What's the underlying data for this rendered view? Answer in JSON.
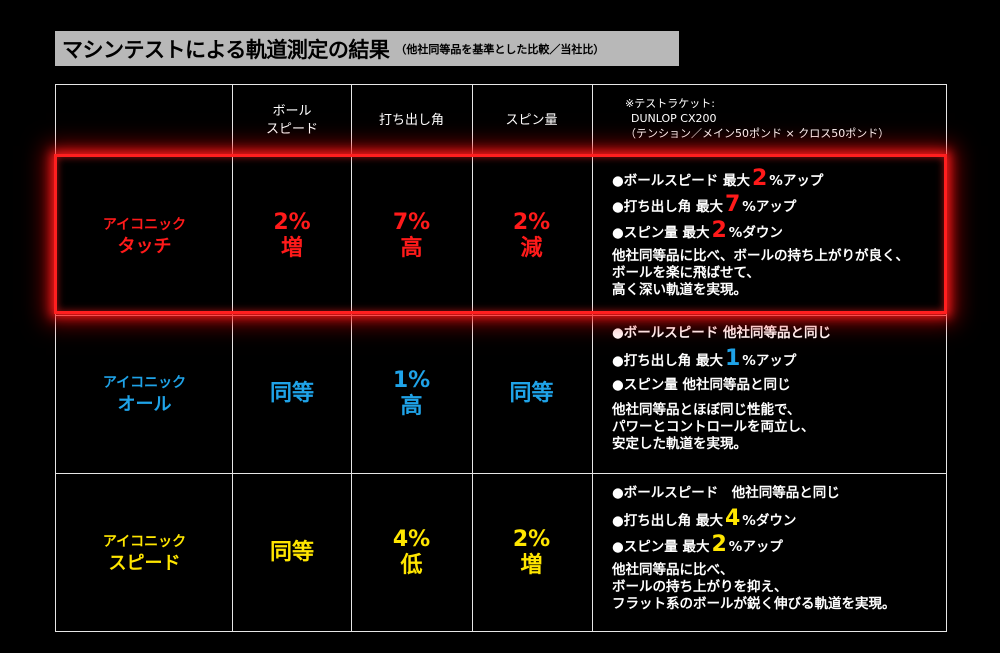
{
  "title": {
    "main": "マシンテストによる軌道測定の結果",
    "sub": "（他社同等品を基準とした比較／当社比）"
  },
  "header": {
    "ball_speed_line1": "ボール",
    "ball_speed_line2": "スピード",
    "launch_angle": "打ち出し角",
    "spin": "スピン量",
    "note": {
      "line1": "※テストラケット:",
      "line2": "DUNLOP CX200",
      "line3": "（テンション／メイン50ポンド × クロス50ポンド）"
    }
  },
  "rows": [
    {
      "name_line1": "アイコニック",
      "name_line2": "タッチ",
      "color": "#ff1a1a",
      "speed_val": "2%",
      "speed_word": "増",
      "angle_val": "7%",
      "angle_word": "高",
      "spin_val": "2%",
      "spin_word": "減",
      "b1_pre": "●ボールスピード 最大",
      "b1_num": "2",
      "b1_post": "%アップ",
      "b2_pre": "●打ち出し角 最大",
      "b2_num": "7",
      "b2_post": "%アップ",
      "b3_pre": "●スピン量 最大",
      "b3_num": "2",
      "b3_post": "%ダウン",
      "para1": "他社同等品に比べ、ボールの持ち上がりが良く、",
      "para2": "ボールを楽に飛ばせて、",
      "para3": "高く深い軌道を実現。"
    },
    {
      "name_line1": "アイコニック",
      "name_line2": "オール",
      "color": "#1fa3e8",
      "speed_val": "同等",
      "angle_val": "1%",
      "angle_word": "高",
      "spin_val": "同等",
      "b1_pre": "●ボールスピード 他社同等品と同じ",
      "b2_pre": "●打ち出し角 最大",
      "b2_num": "1",
      "b2_post": "%アップ",
      "b3_pre": "●スピン量 他社同等品と同じ",
      "para1": "他社同等品とほぼ同じ性能で、",
      "para2": "パワーとコントロールを両立し、",
      "para3": "安定した軌道を実現。"
    },
    {
      "name_line1": "アイコニック",
      "name_line2": "スピード",
      "color": "#ffe600",
      "speed_val": "同等",
      "angle_val": "4%",
      "angle_word": "低",
      "spin_val": "2%",
      "spin_word": "増",
      "b1_pre": "●ボールスピード　他社同等品と同じ",
      "b2_pre": "●打ち出し角 最大",
      "b2_num": "4",
      "b2_post": "%ダウン",
      "b3_pre": "●スピン量 最大",
      "b3_num": "2",
      "b3_post": "%アップ",
      "para1": "他社同等品に比べ、",
      "para2": "ボールの持ち上がりを抑え、",
      "para3": "フラット系のボールが鋭く伸びる軌道を実現。"
    }
  ]
}
